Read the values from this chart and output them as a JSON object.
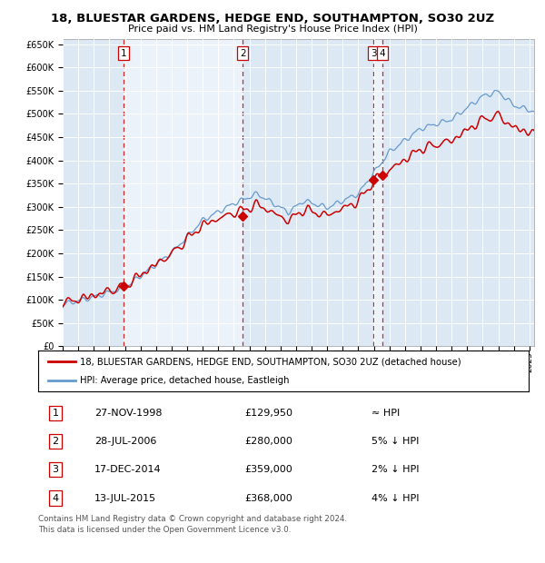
{
  "title": "18, BLUESTAR GARDENS, HEDGE END, SOUTHAMPTON, SO30 2UZ",
  "subtitle": "Price paid vs. HM Land Registry's House Price Index (HPI)",
  "legend_label_red": "18, BLUESTAR GARDENS, HEDGE END, SOUTHAMPTON, SO30 2UZ (detached house)",
  "legend_label_blue": "HPI: Average price, detached house, Eastleigh",
  "footer": "Contains HM Land Registry data © Crown copyright and database right 2024.\nThis data is licensed under the Open Government Licence v3.0.",
  "transactions": [
    {
      "label": "1",
      "date": "27-NOV-1998",
      "price": 129950,
      "hpi_rel": "≈ HPI"
    },
    {
      "label": "2",
      "date": "28-JUL-2006",
      "price": 280000,
      "hpi_rel": "5% ↓ HPI"
    },
    {
      "label": "3",
      "date": "17-DEC-2014",
      "price": 359000,
      "hpi_rel": "2% ↓ HPI"
    },
    {
      "label": "4",
      "date": "13-JUL-2015",
      "price": 368000,
      "hpi_rel": "4% ↓ HPI"
    }
  ],
  "transaction_dates_num": [
    1998.91,
    2006.58,
    2014.97,
    2015.54
  ],
  "transaction_prices": [
    129950,
    280000,
    359000,
    368000
  ],
  "ylim": [
    0,
    660000
  ],
  "yticks": [
    0,
    50000,
    100000,
    150000,
    200000,
    250000,
    300000,
    350000,
    400000,
    450000,
    500000,
    550000,
    600000,
    650000
  ],
  "xlim_start": 1995.0,
  "xlim_end": 2025.3,
  "background_color": "#ffffff",
  "plot_bg_color": "#dce9f5",
  "grid_color": "#ffffff",
  "red_color": "#cc0000",
  "blue_color": "#6699cc",
  "vline_color": "#cc0000"
}
